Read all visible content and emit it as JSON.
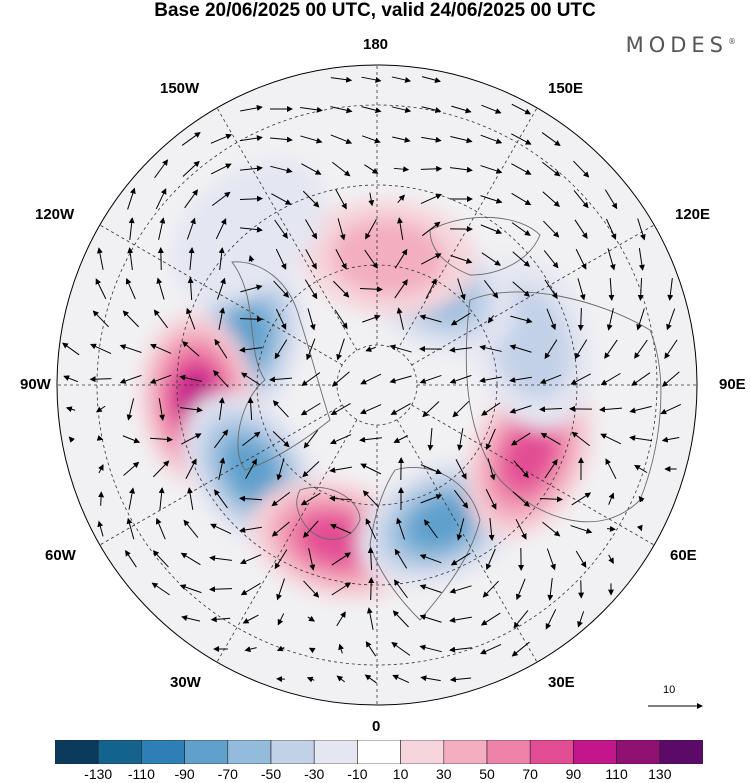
{
  "title": "Base 20/06/2025 00 UTC, valid 24/06/2025 00 UTC",
  "brand": "MODES",
  "brand_mark": "®",
  "longitude_labels": {
    "top": "180",
    "bottom": "0",
    "left": "90W",
    "right": "90E",
    "upper_left_1": "150W",
    "upper_left_2": "120W",
    "upper_right_1": "150E",
    "upper_right_2": "120E",
    "lower_left_1": "60W",
    "lower_left_2": "30W",
    "lower_right_1": "60E",
    "lower_right_2": "30E"
  },
  "reference_vector": {
    "value": "10"
  },
  "colorbar": {
    "colors": [
      "#0b3a5a",
      "#14628e",
      "#2d7fb6",
      "#5fa0cc",
      "#93bbdc",
      "#c3d1e8",
      "#e4e6f2",
      "#ffffff",
      "#f6d6dc",
      "#f3aec0",
      "#ee82a8",
      "#e34d94",
      "#c3168a",
      "#911074",
      "#5c0a6a"
    ],
    "ticks": [
      "-130",
      "-110",
      "-90",
      "-70",
      "-50",
      "-30",
      "-10",
      "10",
      "30",
      "50",
      "70",
      "90",
      "110",
      "130"
    ]
  },
  "map": {
    "projection": "north-polar-stereographic",
    "field": "geopotential height anomaly",
    "anomaly_centers": [
      {
        "lon": -108,
        "lat": 55,
        "value": -90
      },
      {
        "lon": -85,
        "lat": 45,
        "value": 110
      },
      {
        "lon": -55,
        "lat": 52,
        "value": -90
      },
      {
        "lon": -15,
        "lat": 50,
        "value": 80
      },
      {
        "lon": 25,
        "lat": 52,
        "value": -90
      },
      {
        "lon": 65,
        "lat": 48,
        "value": 90
      },
      {
        "lon": 105,
        "lat": 50,
        "value": -50
      },
      {
        "lon": 150,
        "lat": 62,
        "value": -60
      },
      {
        "lon": 175,
        "lat": 58,
        "value": 50
      },
      {
        "lon": -140,
        "lat": 40,
        "value": -30
      }
    ]
  }
}
